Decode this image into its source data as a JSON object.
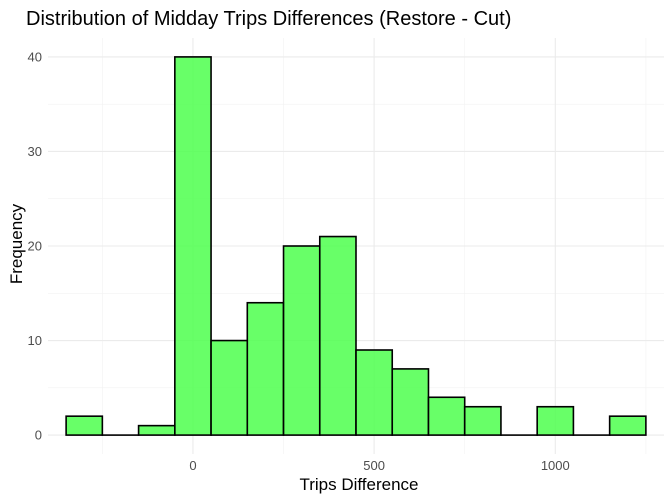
{
  "chart_data": {
    "type": "bar",
    "title": "Distribution of Midday Trips Differences (Restore - Cut)",
    "xlabel": "Trips Difference",
    "ylabel": "Frequency",
    "bin_width": 100,
    "bins": [
      {
        "center": -300,
        "count": 2
      },
      {
        "center": -200,
        "count": 0
      },
      {
        "center": -100,
        "count": 1
      },
      {
        "center": 0,
        "count": 40
      },
      {
        "center": 100,
        "count": 10
      },
      {
        "center": 200,
        "count": 14
      },
      {
        "center": 300,
        "count": 20
      },
      {
        "center": 400,
        "count": 21
      },
      {
        "center": 500,
        "count": 9
      },
      {
        "center": 600,
        "count": 7
      },
      {
        "center": 700,
        "count": 4
      },
      {
        "center": 800,
        "count": 3
      },
      {
        "center": 900,
        "count": 0
      },
      {
        "center": 1000,
        "count": 3
      },
      {
        "center": 1100,
        "count": 0
      },
      {
        "center": 1200,
        "count": 2
      }
    ],
    "xlim": [
      -400,
      1300
    ],
    "ylim": [
      -2,
      42
    ],
    "x_ticks": [
      0,
      500,
      1000
    ],
    "x_tick_labels": [
      "0",
      "500",
      "1000"
    ],
    "y_ticks": [
      0,
      10,
      20,
      30,
      40
    ],
    "y_tick_labels": [
      "0",
      "10",
      "20",
      "30",
      "40"
    ],
    "grid": true,
    "fill_color": "#4dff4d",
    "fill_opacity": 0.85,
    "outline_color": "#000000"
  }
}
